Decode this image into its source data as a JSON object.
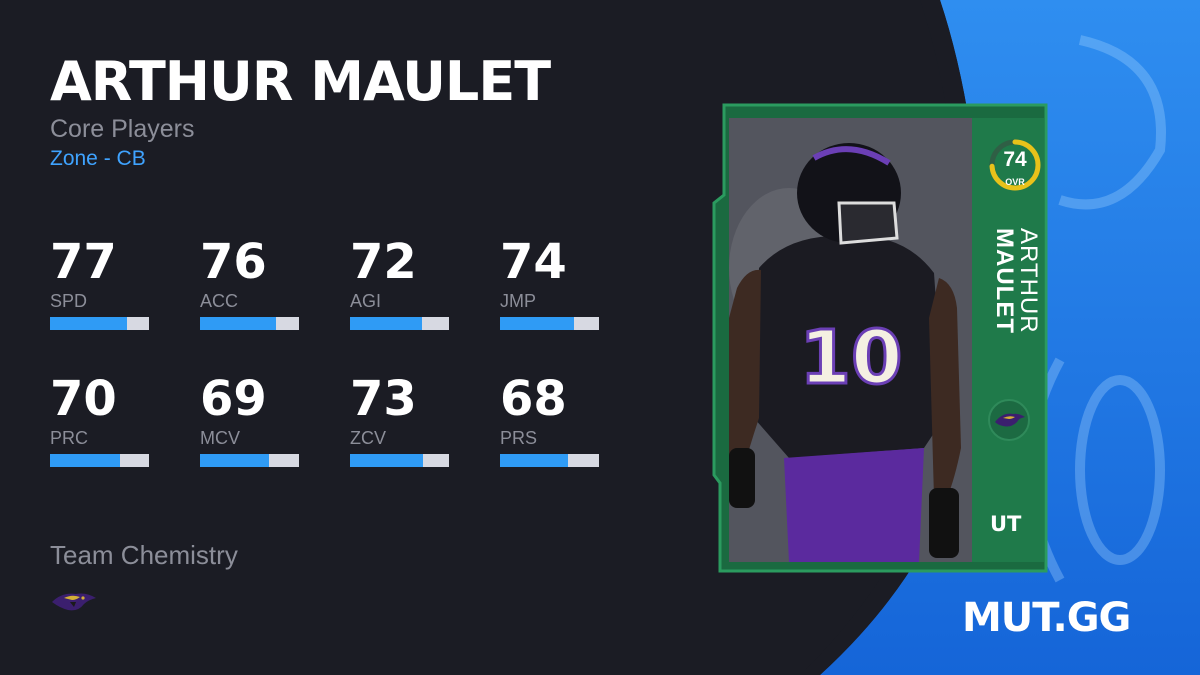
{
  "player": {
    "name": "ARTHUR MAULET",
    "first_name": "ARTHUR",
    "last_name": "MAULET",
    "program": "Core Players",
    "archetype": "Zone - CB"
  },
  "stats": [
    {
      "value": "77",
      "label": "SPD",
      "fill": 0.78
    },
    {
      "value": "76",
      "label": "ACC",
      "fill": 0.77
    },
    {
      "value": "72",
      "label": "AGI",
      "fill": 0.73
    },
    {
      "value": "74",
      "label": "JMP",
      "fill": 0.75
    },
    {
      "value": "70",
      "label": "PRC",
      "fill": 0.71
    },
    {
      "value": "69",
      "label": "MCV",
      "fill": 0.7
    },
    {
      "value": "73",
      "label": "ZCV",
      "fill": 0.74
    },
    {
      "value": "68",
      "label": "PRS",
      "fill": 0.69
    }
  ],
  "card": {
    "ovr": "74",
    "ovr_label": "OVR",
    "ovr_fill": 0.74,
    "jersey_number": "10",
    "program_badge": "UT"
  },
  "chemistry": {
    "title": "Team Chemistry",
    "team_icon": "ravens-logo-icon"
  },
  "brand": "MUT.GG",
  "colors": {
    "background": "#1b1c24",
    "accent_blue": "#2f9bf5",
    "card_green": "#1f7a4a",
    "ovr_ring": "#e8c21a",
    "ravens_purple": "#4b1f8c"
  }
}
